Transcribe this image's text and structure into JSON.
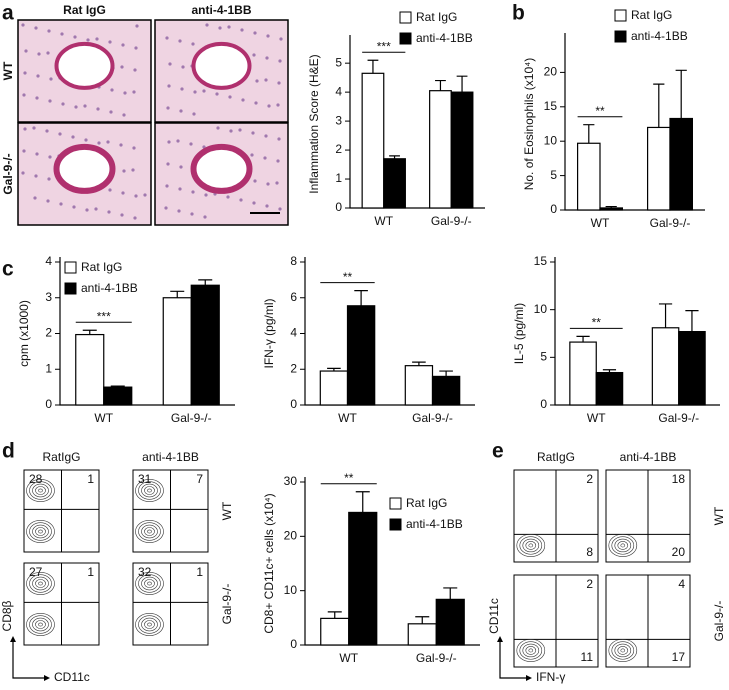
{
  "panels": [
    "a",
    "b",
    "c",
    "d",
    "e"
  ],
  "histology": {
    "columns": [
      "Rat IgG",
      "anti-4-1BB"
    ],
    "rows": [
      "WT",
      "Gal-9-/-"
    ]
  },
  "flow_d": {
    "columns": [
      "RatIgG",
      "anti-4-1BB"
    ],
    "rows": [
      "WT",
      "Gal-9-/-"
    ],
    "x_axis": "CD11c",
    "y_axis": "CD8β",
    "plots": [
      [
        {
          "upper_left": 28,
          "upper_right": 1
        },
        {
          "upper_left": 31,
          "upper_right": 7
        }
      ],
      [
        {
          "upper_left": 27,
          "upper_right": 1
        },
        {
          "upper_left": 32,
          "upper_right": 1
        }
      ]
    ]
  },
  "flow_e": {
    "columns": [
      "RatIgG",
      "anti-4-1BB"
    ],
    "rows": [
      "WT",
      "Gal-9-/-"
    ],
    "x_axis": "IFN-γ",
    "y_axis": "CD11c",
    "plots": [
      [
        {
          "upper_right": 2,
          "lower_right": 8
        },
        {
          "upper_right": 18,
          "lower_right": 20
        }
      ],
      [
        {
          "upper_right": 2,
          "lower_right": 11
        },
        {
          "upper_right": 4,
          "lower_right": 17
        }
      ]
    ]
  },
  "chart_data": [
    {
      "type": "bar",
      "y_label": "Inflammation Score (H&E)",
      "categories": [
        "WT",
        "Gal-9-/-"
      ],
      "legend": "top",
      "annotations": [
        "***"
      ],
      "series": [
        {
          "name": "Rat IgG",
          "color": "#ffffff",
          "values": [
            4.65,
            4.05
          ],
          "errors": [
            0.45,
            0.35
          ]
        },
        {
          "name": "anti-4-1BB",
          "color": "#000000",
          "values": [
            1.7,
            4.0
          ],
          "errors": [
            0.1,
            0.55
          ]
        }
      ],
      "ylim": [
        0,
        5.8
      ],
      "yticks": [
        0,
        1,
        2,
        3,
        4,
        5
      ],
      "grid": false
    },
    {
      "type": "bar",
      "y_label": "No. of Eosinophils (x10⁴)",
      "categories": [
        "WT",
        "Gal-9-/-"
      ],
      "legend": "top",
      "annotations": [
        "**"
      ],
      "series": [
        {
          "name": "Rat IgG",
          "color": "#ffffff",
          "values": [
            9.7,
            12
          ],
          "errors": [
            2.7,
            6.3
          ]
        },
        {
          "name": "anti-4-1BB",
          "color": "#000000",
          "values": [
            0.3,
            13.3
          ],
          "errors": [
            0.2,
            7
          ]
        }
      ],
      "ylim": [
        0,
        25
      ],
      "yticks": [
        0,
        5,
        10,
        15,
        20
      ],
      "grid": false
    },
    {
      "type": "bar",
      "y_label": "cpm (x1000)",
      "categories": [
        "WT",
        "Gal-9-/-"
      ],
      "legend": "upper left",
      "annotations": [
        "***"
      ],
      "series": [
        {
          "name": "Rat IgG",
          "color": "#ffffff",
          "values": [
            1.97,
            3.0
          ],
          "errors": [
            0.12,
            0.18
          ]
        },
        {
          "name": "anti-4-1BB",
          "color": "#000000",
          "values": [
            0.5,
            3.35
          ],
          "errors": [
            0.03,
            0.15
          ]
        }
      ],
      "ylim": [
        0,
        4
      ],
      "yticks": [
        0,
        1,
        2,
        3,
        4
      ],
      "grid": false
    },
    {
      "type": "bar",
      "y_label": "IFN-γ (pg/ml)",
      "categories": [
        "WT",
        "Gal-9-/-"
      ],
      "annotations": [
        "**"
      ],
      "series": [
        {
          "name": "Rat IgG",
          "color": "#ffffff",
          "values": [
            1.9,
            2.2
          ],
          "errors": [
            0.15,
            0.2
          ]
        },
        {
          "name": "anti-4-1BB",
          "color": "#000000",
          "values": [
            5.55,
            1.6
          ],
          "errors": [
            0.85,
            0.3
          ]
        }
      ],
      "ylim": [
        0,
        8
      ],
      "yticks": [
        0,
        2,
        4,
        6,
        8
      ],
      "grid": false
    },
    {
      "type": "bar",
      "y_label": "IL-5 (pg/ml)",
      "categories": [
        "WT",
        "Gal-9-/-"
      ],
      "annotations": [
        "**"
      ],
      "series": [
        {
          "name": "Rat IgG",
          "color": "#ffffff",
          "values": [
            6.6,
            8.1
          ],
          "errors": [
            0.6,
            2.5
          ]
        },
        {
          "name": "anti-4-1BB",
          "color": "#000000",
          "values": [
            3.4,
            7.7
          ],
          "errors": [
            0.3,
            2.2
          ]
        }
      ],
      "ylim": [
        0,
        15
      ],
      "yticks": [
        0,
        5,
        10,
        15
      ],
      "grid": false
    },
    {
      "type": "bar",
      "y_label": "CD8+ CD11c+ cells (x10⁴)",
      "categories": [
        "WT",
        "Gal-9-/-"
      ],
      "legend": "upper right",
      "annotations": [
        "**"
      ],
      "series": [
        {
          "name": "Rat IgG",
          "color": "#ffffff",
          "values": [
            4.9,
            3.9
          ],
          "errors": [
            1.2,
            1.3
          ]
        },
        {
          "name": "anti-4-1BB",
          "color": "#000000",
          "values": [
            24.4,
            8.4
          ],
          "errors": [
            3.8,
            2.1
          ]
        }
      ],
      "ylim": [
        0,
        30
      ],
      "yticks": [
        0,
        10,
        20,
        30
      ],
      "grid": false
    }
  ]
}
